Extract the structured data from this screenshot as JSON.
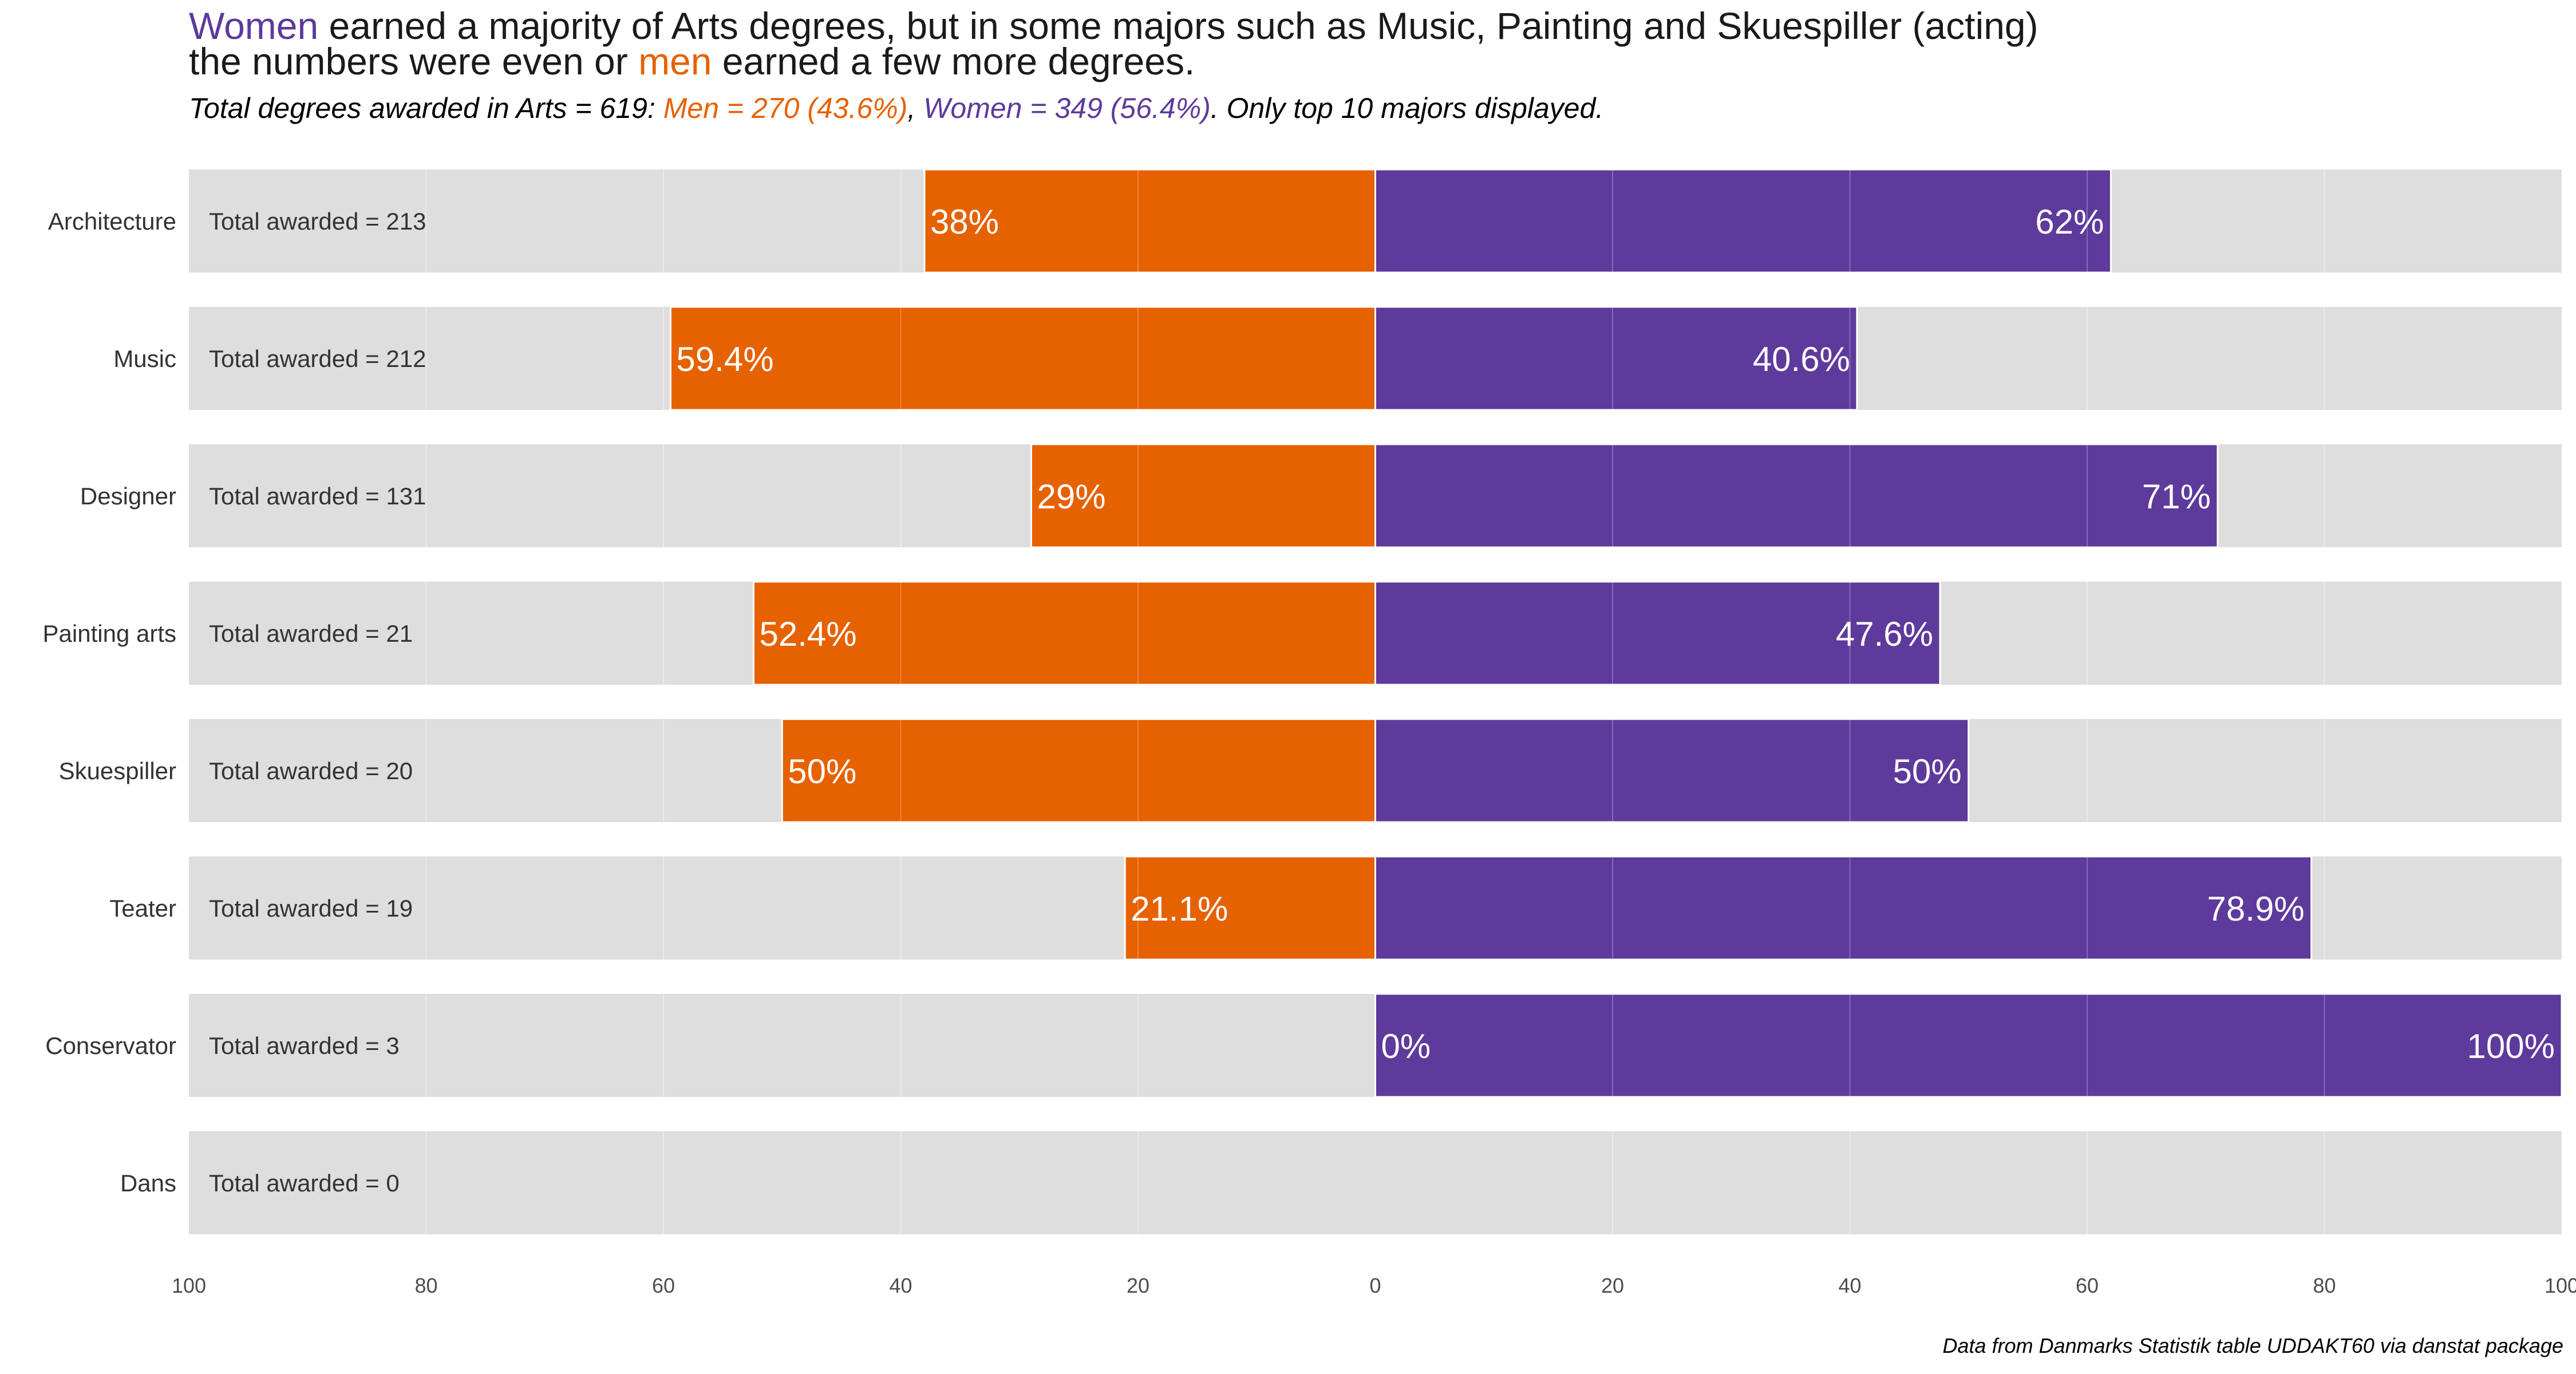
{
  "colors": {
    "men": "#E66100",
    "women": "#5D3A9B",
    "panel": "#DEDEDE",
    "label": "#FFFFFF"
  },
  "title": {
    "w_word": "Women",
    "line1_rest": " earned a majority of Arts degrees, but in some majors such as Music, Painting and Skuespiller (acting)",
    "line2_a": "the numbers were even or ",
    "m_word": "men",
    "line2_b": " earned a few more degrees."
  },
  "subtitle": {
    "prefix": "Total degrees awarded in Arts = 619: ",
    "men_part": "Men = 270 (43.6%)",
    "sep": ", ",
    "women_part": "Women = 349 (56.4%)",
    "suffix": ". Only top 10 majors displayed."
  },
  "caption": "Data from Danmarks Statistik table UDDAKT60 via danstat package",
  "chart_data": {
    "type": "bar",
    "orientation": "horizontal-diverging",
    "categories": [
      "Architecture",
      "Music",
      "Designer",
      "Painting arts",
      "Skuespiller",
      "Teater",
      "Conservator",
      "Dans"
    ],
    "totals": [
      213,
      212,
      131,
      21,
      20,
      19,
      3,
      0
    ],
    "total_prefix": "Total awarded = ",
    "series": [
      {
        "name": "Men",
        "values": [
          38,
          59.4,
          29,
          52.4,
          50,
          21.1,
          0,
          null
        ],
        "labels": [
          "38%",
          "59.4%",
          "29%",
          "52.4%",
          "50%",
          "21.1%",
          "0%",
          ""
        ]
      },
      {
        "name": "Women",
        "values": [
          62,
          40.6,
          71,
          47.6,
          50,
          78.9,
          100,
          null
        ],
        "labels": [
          "62%",
          "40.6%",
          "71%",
          "47.6%",
          "50%",
          "78.9%",
          "100%",
          ""
        ]
      }
    ],
    "xlim": [
      -100,
      100
    ],
    "xticks": [
      "100",
      "80",
      "60",
      "40",
      "20",
      "0",
      "20",
      "40",
      "60",
      "80",
      "100"
    ],
    "grid": true
  }
}
